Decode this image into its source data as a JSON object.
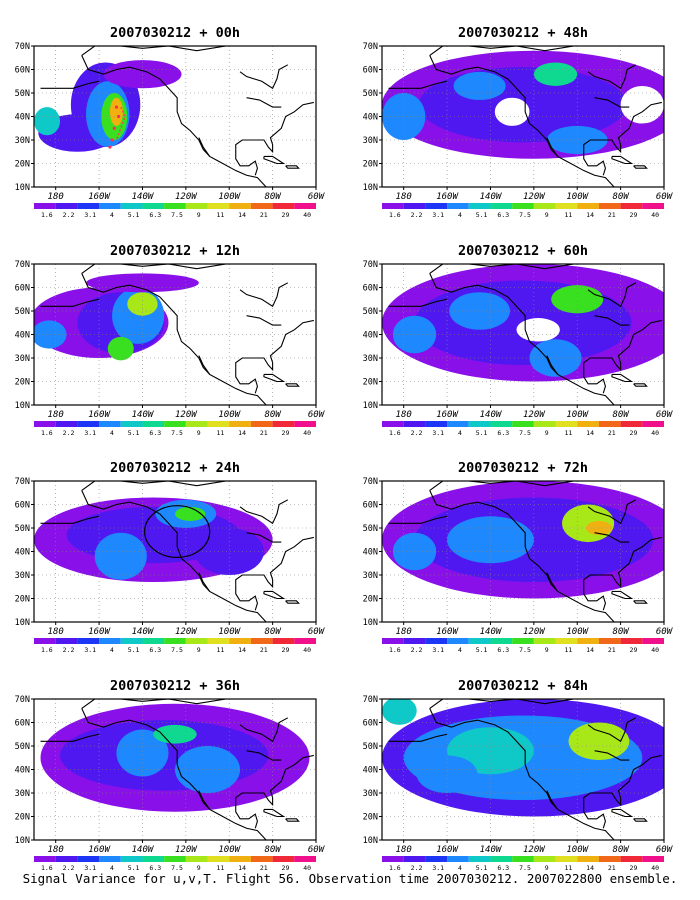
{
  "caption": "Signal Variance for u,v,T. Flight 56. Observation time 2007030212. 2007022800 ensemble.",
  "colors": {
    "levels": [
      "#8a10ea",
      "#5018f0",
      "#1d36f5",
      "#1e88ff",
      "#0fc8c8",
      "#0fd890",
      "#38e020",
      "#a8e818",
      "#e0e020",
      "#f0b010",
      "#f06818",
      "#f02838",
      "#f0108c"
    ],
    "coastline": "#000000",
    "track": "#ff2d55",
    "grid": "#888888"
  },
  "colorbar_labels": [
    "1.6",
    "2.2",
    "3.1",
    "4",
    "5.1",
    "6.3",
    "7.5",
    "9",
    "11",
    "14",
    "21",
    "29",
    "40"
  ],
  "axes": {
    "lon_ticks": [
      "180",
      "160W",
      "140W",
      "120W",
      "100W",
      "80W",
      "60W"
    ],
    "lat_ticks": [
      "10N",
      "20N",
      "30N",
      "40N",
      "50N",
      "60N",
      "70N"
    ],
    "lon_range": [
      -190,
      -60
    ],
    "lat_range": [
      10,
      70
    ]
  },
  "panels": [
    {
      "title": "2007030212 + 00h",
      "lead_h": 0
    },
    {
      "title": "2007030212 + 48h",
      "lead_h": 48
    },
    {
      "title": "2007030212 + 12h",
      "lead_h": 12
    },
    {
      "title": "2007030212 + 60h",
      "lead_h": 60
    },
    {
      "title": "2007030212 + 24h",
      "lead_h": 24
    },
    {
      "title": "2007030212 + 72h",
      "lead_h": 72
    },
    {
      "title": "2007030212 + 36h",
      "lead_h": 36
    },
    {
      "title": "2007030212 + 84h",
      "lead_h": 84
    }
  ]
}
